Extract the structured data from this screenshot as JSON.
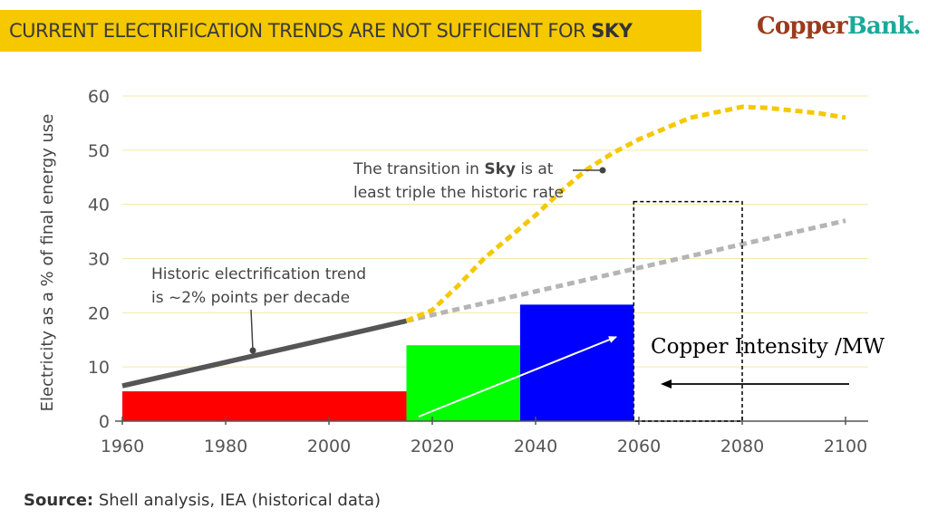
{
  "title": {
    "prefix": "CURRENT ELECTRIFICATION TRENDS ARE NOT SUFFICIENT FOR ",
    "emphasis": "SKY"
  },
  "logo": {
    "part1": "Copper",
    "part2": "Bank."
  },
  "source": {
    "label": "Source:",
    "text": " Shell analysis, IEA (historical data)"
  },
  "colors": {
    "title_bar": "#f5c800",
    "sky": "#f5c800",
    "historic": "#555555",
    "trend_extension": "#b5b5b5",
    "bar_1": "#ff0000",
    "bar_2": "#00ff00",
    "bar_3": "#0000ff",
    "logo_part1": "#9b3a1d",
    "logo_part2": "#1ba99a"
  },
  "annotations": {
    "sky_line1_pre": "The transition in ",
    "sky_line1_bold": "Sky",
    "sky_line1_post": " is at",
    "sky_line2": "least triple the historic rate",
    "historic_line1": "Historic electrification trend",
    "historic_line2": "is ~2% points per decade",
    "copper": "Copper Intensity /MW"
  },
  "chart_data": {
    "type": "line",
    "ylabel": "Electricity as a % of final energy use",
    "xlabel": "",
    "xlim": [
      1960,
      2100
    ],
    "ylim": [
      0,
      60
    ],
    "x_ticks": [
      1960,
      1980,
      2000,
      2020,
      2040,
      2060,
      2080,
      2100
    ],
    "y_ticks": [
      0,
      10,
      20,
      30,
      40,
      50,
      60
    ],
    "grid": true,
    "series": [
      {
        "key": "historic",
        "style": "solid",
        "x": [
          1960,
          2015
        ],
        "y": [
          6.5,
          18.5
        ]
      },
      {
        "key": "trend_extension",
        "style": "dashed",
        "x": [
          2015,
          2100
        ],
        "y": [
          18.5,
          37
        ]
      },
      {
        "key": "sky",
        "style": "dashed",
        "x": [
          2015,
          2020,
          2025,
          2030,
          2035,
          2040,
          2045,
          2050,
          2055,
          2060,
          2065,
          2070,
          2075,
          2080,
          2085,
          2090,
          2095,
          2100
        ],
        "y": [
          18.5,
          20.5,
          25,
          30,
          34,
          38,
          42.5,
          46.5,
          49.5,
          52,
          54,
          56,
          57,
          58,
          57.8,
          57.3,
          56.8,
          56
        ]
      }
    ],
    "bars": [
      {
        "key": "bar_1",
        "x_start": 1960,
        "x_end": 2015,
        "value": 5.5
      },
      {
        "key": "bar_2",
        "x_start": 2015,
        "x_end": 2037,
        "value": 14
      },
      {
        "key": "bar_3",
        "x_start": 2037,
        "x_end": 2059,
        "value": 21.5
      }
    ],
    "highlight_box": {
      "x_start": 2059,
      "x_end": 2080,
      "y_start": 0,
      "y_end": 40.5
    }
  }
}
